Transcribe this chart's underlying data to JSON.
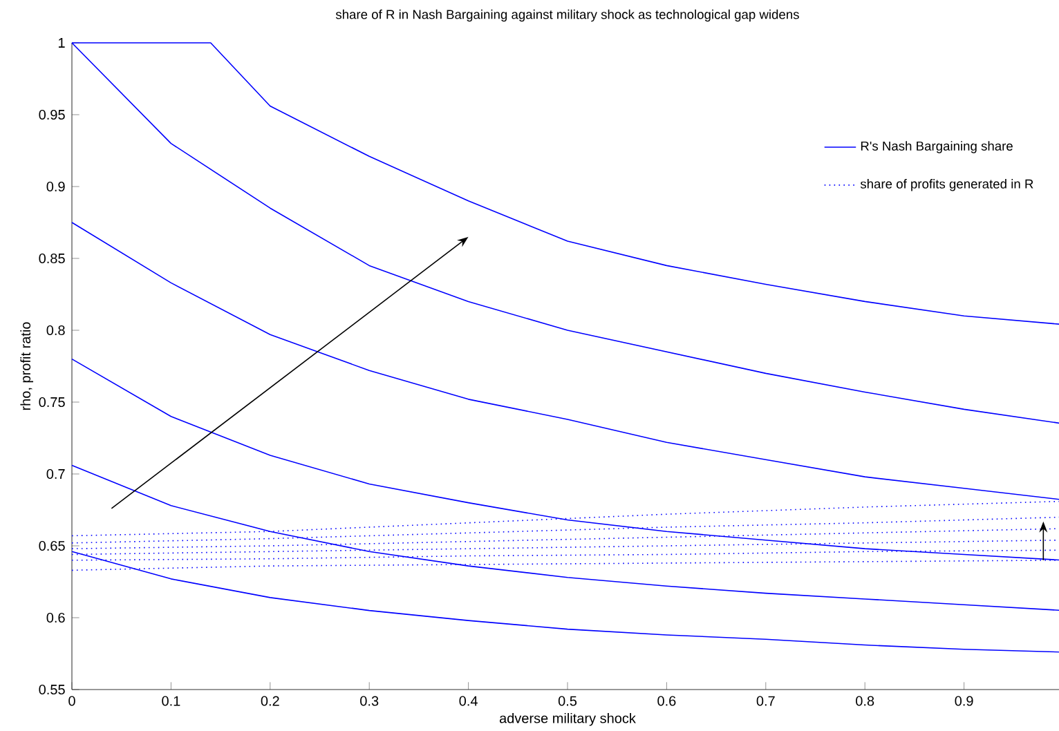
{
  "chart_data": {
    "type": "line",
    "title": "share of R in Nash Bargaining against military shock as technological gap widens",
    "xlabel": "adverse military shock",
    "ylabel": "rho, profit ratio",
    "xlim": [
      0,
      1
    ],
    "ylim": [
      0.55,
      1
    ],
    "xticks": [
      0,
      0.1,
      0.2,
      0.3,
      0.4,
      0.5,
      0.6,
      0.7,
      0.8,
      0.9
    ],
    "yticks": [
      0.55,
      0.6,
      0.65,
      0.7,
      0.75,
      0.8,
      0.85,
      0.9,
      0.95,
      1
    ],
    "legend": "top right",
    "grid": false,
    "marker": "none",
    "x": [
      0,
      0.1,
      0.2,
      0.3,
      0.4,
      0.5,
      0.6,
      0.7,
      0.8,
      0.9,
      1
    ],
    "series": [
      {
        "name": "R's Nash Bargaining share",
        "color": "#0000ff",
        "line_style": "solid",
        "x": [
          0,
          0.14,
          0.2,
          0.3,
          0.4,
          0.5,
          0.6,
          0.7,
          0.8,
          0.9,
          1
        ],
        "values": [
          1,
          1,
          0.956,
          0.921,
          0.89,
          0.862,
          0.845,
          0.832,
          0.82,
          0.81,
          0.804
        ]
      },
      {
        "color": "#0000ff",
        "line_style": "solid",
        "values": [
          1,
          0.93,
          0.885,
          0.845,
          0.82,
          0.8,
          0.785,
          0.77,
          0.757,
          0.745,
          0.735
        ]
      },
      {
        "color": "#0000ff",
        "line_style": "solid",
        "values": [
          0.875,
          0.833,
          0.797,
          0.772,
          0.752,
          0.738,
          0.722,
          0.71,
          0.698,
          0.69,
          0.682
        ]
      },
      {
        "color": "#0000ff",
        "line_style": "solid",
        "values": [
          0.78,
          0.74,
          0.713,
          0.693,
          0.68,
          0.668,
          0.66,
          0.654,
          0.648,
          0.644,
          0.64
        ]
      },
      {
        "color": "#0000ff",
        "line_style": "solid",
        "values": [
          0.706,
          0.678,
          0.66,
          0.646,
          0.636,
          0.628,
          0.622,
          0.617,
          0.613,
          0.609,
          0.605
        ]
      },
      {
        "color": "#0000ff",
        "line_style": "solid",
        "values": [
          0.646,
          0.627,
          0.614,
          0.605,
          0.598,
          0.592,
          0.588,
          0.585,
          0.581,
          0.578,
          0.576
        ]
      },
      {
        "name": "share of profits generated in R",
        "color": "#0000ff",
        "line_style": "dotted",
        "x": [
          0,
          0.2,
          0.4,
          0.6,
          0.8,
          1
        ],
        "values": [
          0.657,
          0.66,
          0.666,
          0.672,
          0.677,
          0.681
        ]
      },
      {
        "color": "#0000ff",
        "line_style": "dotted",
        "x": [
          0,
          0.2,
          0.4,
          0.6,
          0.8,
          1
        ],
        "values": [
          0.652,
          0.655,
          0.659,
          0.663,
          0.666,
          0.67
        ]
      },
      {
        "color": "#0000ff",
        "line_style": "dotted",
        "x": [
          0,
          0.2,
          0.4,
          0.6,
          0.8,
          1
        ],
        "values": [
          0.648,
          0.65,
          0.653,
          0.656,
          0.659,
          0.662
        ]
      },
      {
        "color": "#0000ff",
        "line_style": "dotted",
        "x": [
          0,
          0.2,
          0.4,
          0.6,
          0.8,
          1
        ],
        "values": [
          0.644,
          0.646,
          0.648,
          0.65,
          0.652,
          0.654
        ]
      },
      {
        "color": "#0000ff",
        "line_style": "dotted",
        "x": [
          0,
          0.2,
          0.4,
          0.6,
          0.8,
          1
        ],
        "values": [
          0.64,
          0.641,
          0.643,
          0.644,
          0.646,
          0.647
        ]
      },
      {
        "color": "#0000ff",
        "line_style": "dotted",
        "x": [
          0,
          0.2,
          0.4,
          0.6,
          0.8,
          1
        ],
        "values": [
          0.633,
          0.636,
          0.637,
          0.638,
          0.639,
          0.64
        ]
      }
    ]
  }
}
